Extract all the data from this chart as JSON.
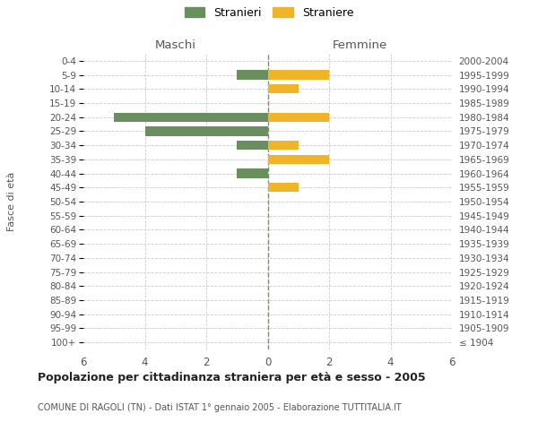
{
  "age_groups": [
    "100+",
    "95-99",
    "90-94",
    "85-89",
    "80-84",
    "75-79",
    "70-74",
    "65-69",
    "60-64",
    "55-59",
    "50-54",
    "45-49",
    "40-44",
    "35-39",
    "30-34",
    "25-29",
    "20-24",
    "15-19",
    "10-14",
    "5-9",
    "0-4"
  ],
  "birth_years": [
    "≤ 1904",
    "1905-1909",
    "1910-1914",
    "1915-1919",
    "1920-1924",
    "1925-1929",
    "1930-1934",
    "1935-1939",
    "1940-1944",
    "1945-1949",
    "1950-1954",
    "1955-1959",
    "1960-1964",
    "1965-1969",
    "1970-1974",
    "1975-1979",
    "1980-1984",
    "1985-1989",
    "1990-1994",
    "1995-1999",
    "2000-2004"
  ],
  "maschi": [
    0,
    0,
    0,
    0,
    0,
    0,
    0,
    0,
    0,
    0,
    0,
    0,
    1,
    0,
    1,
    4,
    5,
    0,
    0,
    1,
    0
  ],
  "femmine": [
    0,
    0,
    0,
    0,
    0,
    0,
    0,
    0,
    0,
    0,
    0,
    1,
    0,
    2,
    1,
    0,
    2,
    0,
    1,
    2,
    0
  ],
  "color_maschi": "#6b8e5e",
  "color_femmine": "#f0b429",
  "title": "Popolazione per cittadinanza straniera per età e sesso - 2005",
  "subtitle": "COMUNE DI RAGOLI (TN) - Dati ISTAT 1° gennaio 2005 - Elaborazione TUTTITALIA.IT",
  "xlabel_left": "Maschi",
  "xlabel_right": "Femmine",
  "ylabel_left": "Fasce di età",
  "xlim": 6,
  "legend_stranieri": "Stranieri",
  "legend_straniere": "Straniere",
  "background_color": "#ffffff",
  "grid_color": "#cccccc",
  "center_line_color": "#888866"
}
